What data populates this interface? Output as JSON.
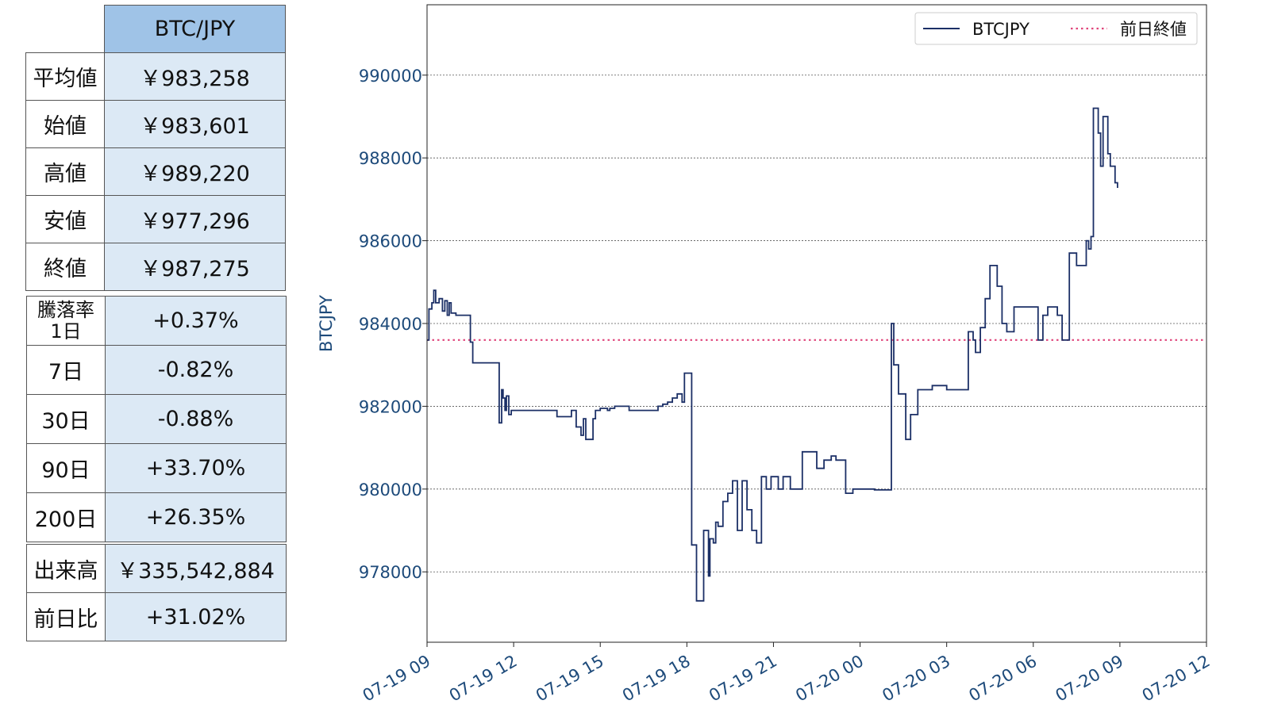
{
  "summary": {
    "header": "BTC/JPY",
    "price_rows": [
      {
        "label": "平均値",
        "value": "￥983,258"
      },
      {
        "label": "始値",
        "value": "￥983,601"
      },
      {
        "label": "高値",
        "value": "￥989,220"
      },
      {
        "label": "安値",
        "value": "￥977,296"
      },
      {
        "label": "終値",
        "value": "￥987,275"
      }
    ],
    "change_rows": [
      {
        "label": "騰落率",
        "label2": "1日",
        "value": "+0.37%"
      },
      {
        "label": "7日",
        "value": "-0.82%"
      },
      {
        "label": "30日",
        "value": "-0.88%"
      },
      {
        "label": "90日",
        "value": "+33.70%"
      },
      {
        "label": "200日",
        "value": "+26.35%"
      }
    ],
    "volume_rows": [
      {
        "label": "出来高",
        "value": "￥335,542,884"
      },
      {
        "label": "前日比",
        "value": "+31.02%"
      }
    ]
  },
  "colors": {
    "line": "#1b2f66",
    "reference": "#e0457b",
    "header_cell": "#9fc3e7",
    "value_cell": "#dce9f5",
    "tick_text": "#1d4a7a"
  },
  "chart_data": {
    "type": "line",
    "ylabel": "BTCJPY",
    "xlabel": "",
    "ylim": [
      976300,
      991700
    ],
    "xlim": [
      "07-19 09:00",
      "07-20 12:00"
    ],
    "yticks": [
      978000,
      980000,
      982000,
      984000,
      986000,
      988000,
      990000
    ],
    "yticklabels": [
      "978000",
      "980000",
      "982000",
      "984000",
      "986000",
      "988000",
      "990000"
    ],
    "xticks": [
      "07-19 09:00",
      "07-19 12:00",
      "07-19 15:00",
      "07-19 18:00",
      "07-19 21:00",
      "07-20 00:00",
      "07-20 03:00",
      "07-20 06:00",
      "07-20 09:00",
      "07-20 12:00"
    ],
    "xticklabels": [
      "07-19 09",
      "07-19 12",
      "07-19 15",
      "07-19 18",
      "07-19 21",
      "07-20 00",
      "07-20 03",
      "07-20 06",
      "07-20 09",
      "07-20 12"
    ],
    "grid": "horizontal dotted",
    "legend": "top-right",
    "series": [
      {
        "name": "BTCJPY",
        "style": "step",
        "x": [
          "07-19 09:00",
          "07-19 09:04",
          "07-19 09:10",
          "07-19 09:14",
          "07-19 09:18",
          "07-19 09:25",
          "07-19 09:32",
          "07-19 09:37",
          "07-19 09:42",
          "07-19 09:46",
          "07-19 09:50",
          "07-19 10:00",
          "07-19 10:30",
          "07-19 10:35",
          "07-19 10:40",
          "07-19 11:00",
          "07-19 11:30",
          "07-19 11:35",
          "07-19 11:38",
          "07-19 11:42",
          "07-19 11:45",
          "07-19 11:50",
          "07-19 11:55",
          "07-19 12:00",
          "07-19 13:30",
          "07-19 14:00",
          "07-19 14:10",
          "07-19 14:20",
          "07-19 14:25",
          "07-19 14:30",
          "07-19 14:45",
          "07-19 14:50",
          "07-19 15:00",
          "07-19 15:15",
          "07-19 15:20",
          "07-19 15:30",
          "07-19 16:00",
          "07-19 17:00",
          "07-19 17:10",
          "07-19 17:20",
          "07-19 17:30",
          "07-19 17:40",
          "07-19 17:50",
          "07-19 17:55",
          "07-19 18:05",
          "07-19 18:10",
          "07-19 18:20",
          "07-19 18:35",
          "07-19 18:45",
          "07-19 18:48",
          "07-19 18:55",
          "07-19 19:00",
          "07-19 19:05",
          "07-19 19:15",
          "07-19 19:25",
          "07-19 19:35",
          "07-19 19:45",
          "07-19 19:55",
          "07-19 20:05",
          "07-19 20:15",
          "07-19 20:25",
          "07-19 20:35",
          "07-19 20:45",
          "07-19 20:55",
          "07-19 21:10",
          "07-19 21:20",
          "07-19 21:35",
          "07-19 22:00",
          "07-19 22:30",
          "07-19 22:45",
          "07-19 23:00",
          "07-19 23:10",
          "07-19 23:30",
          "07-19 23:45",
          "07-20 00:30",
          "07-20 01:05",
          "07-20 01:10",
          "07-20 01:20",
          "07-20 01:35",
          "07-20 01:45",
          "07-20 02:00",
          "07-20 02:30",
          "07-20 03:00",
          "07-20 03:40",
          "07-20 03:45",
          "07-20 03:55",
          "07-20 04:00",
          "07-20 04:10",
          "07-20 04:20",
          "07-20 04:30",
          "07-20 04:45",
          "07-20 04:55",
          "07-20 05:05",
          "07-20 05:20",
          "07-20 05:30",
          "07-20 06:10",
          "07-20 06:20",
          "07-20 06:30",
          "07-20 06:50",
          "07-20 07:00",
          "07-20 07:15",
          "07-20 07:30",
          "07-20 07:50",
          "07-20 07:55",
          "07-20 08:00",
          "07-20 08:05",
          "07-20 08:15",
          "07-20 08:20",
          "07-20 08:25",
          "07-20 08:35",
          "07-20 08:40",
          "07-20 08:50",
          "07-20 08:55"
        ],
        "values": [
          983600,
          984350,
          984500,
          984800,
          984500,
          984600,
          984300,
          984550,
          984200,
          984500,
          984250,
          984200,
          983550,
          983050,
          983050,
          983050,
          981600,
          982400,
          982200,
          981900,
          982250,
          981800,
          981900,
          981900,
          981750,
          981900,
          981500,
          981300,
          981700,
          981200,
          981700,
          981900,
          981950,
          981900,
          981950,
          982000,
          981900,
          982000,
          982050,
          982100,
          982200,
          982300,
          982100,
          982800,
          982800,
          978650,
          977300,
          979000,
          977900,
          978800,
          978700,
          979200,
          979100,
          979700,
          979900,
          980200,
          979000,
          980200,
          979500,
          979000,
          978700,
          980300,
          980000,
          980300,
          980000,
          980300,
          980000,
          980900,
          980500,
          980700,
          980800,
          980700,
          979900,
          980000,
          979980,
          984000,
          983000,
          982300,
          981200,
          981800,
          982400,
          982500,
          982400,
          982400,
          983800,
          983600,
          983300,
          983900,
          984600,
          985400,
          984900,
          984000,
          983800,
          984400,
          984400,
          983600,
          984200,
          984400,
          984200,
          983600,
          985700,
          985400,
          986000,
          985800,
          986100,
          989200,
          988600,
          987800,
          989000,
          988100,
          987800,
          987400,
          987275
        ]
      },
      {
        "name": "前日終値",
        "style": "reference",
        "value": 983601
      }
    ]
  }
}
